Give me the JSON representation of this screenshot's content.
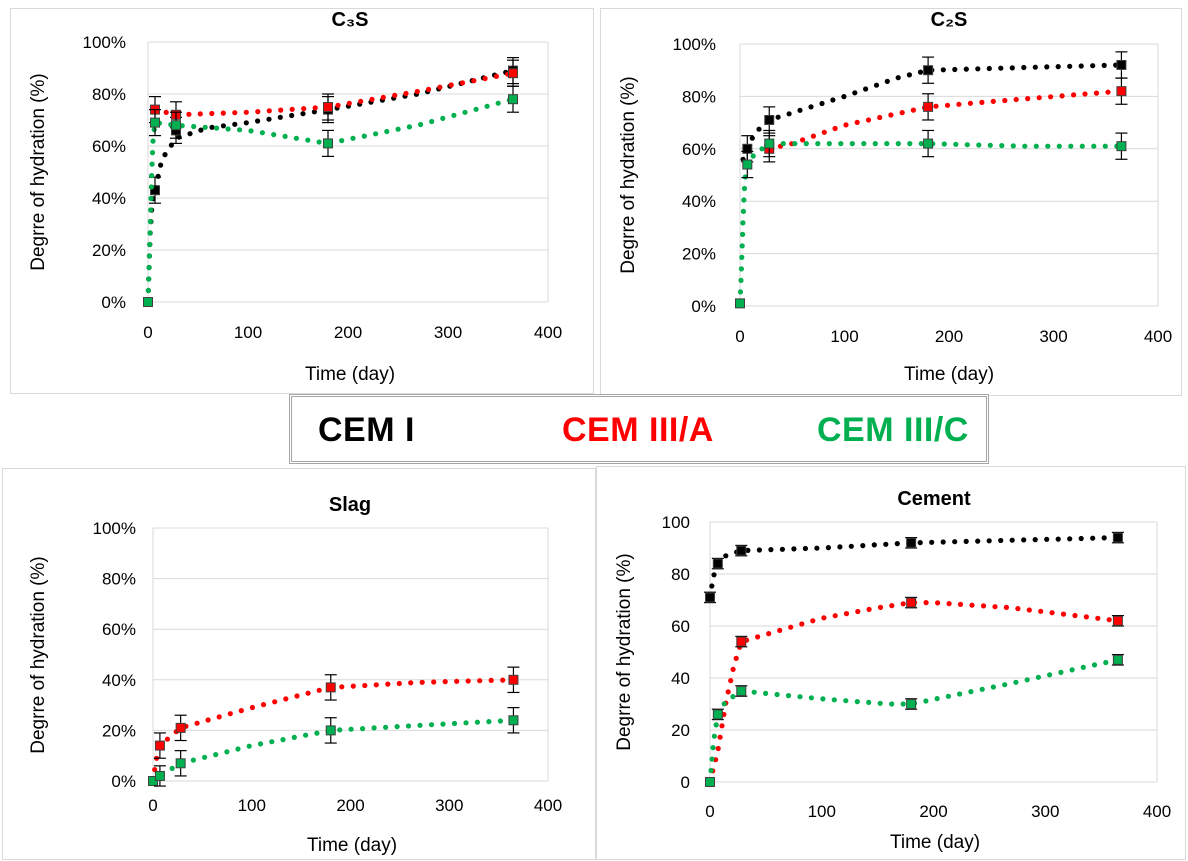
{
  "legend": {
    "items": [
      {
        "label": "CEM I",
        "color": "#000000"
      },
      {
        "label": "CEM III/A",
        "color": "#ff0000"
      },
      {
        "label": "CEM III/C",
        "color": "#00b050"
      }
    ]
  },
  "chart_data": [
    {
      "id": "c3s",
      "type": "scatter",
      "title": "C₃S",
      "xlabel": "Time (day)",
      "ylabel": "Degrre of hydration (%)",
      "xlim": [
        0,
        400
      ],
      "ylim": [
        0,
        100
      ],
      "xticks": [
        "0",
        "100",
        "200",
        "300",
        "400"
      ],
      "yticks": [
        "0%",
        "20%",
        "40%",
        "60%",
        "80%",
        "100%"
      ],
      "grid": "horizontal",
      "series": [
        {
          "name": "CEM I",
          "color": "#000000",
          "points": [
            {
              "x": 0,
              "y": 0,
              "err": 0
            },
            {
              "x": 7,
              "y": 43,
              "err": 5
            },
            {
              "x": 28,
              "y": 66,
              "err": 5
            },
            {
              "x": 180,
              "y": 74,
              "err": 5
            },
            {
              "x": 365,
              "y": 89,
              "err": 5
            }
          ],
          "trend": [
            [
              0,
              0
            ],
            [
              2,
              25
            ],
            [
              4,
              38
            ],
            [
              7,
              43
            ],
            [
              14,
              55
            ],
            [
              28,
              63
            ],
            [
              60,
              67
            ],
            [
              100,
              69
            ],
            [
              180,
              74
            ],
            [
              270,
              80
            ],
            [
              365,
              89
            ]
          ]
        },
        {
          "name": "CEM III/A",
          "color": "#ff0000",
          "points": [
            {
              "x": 7,
              "y": 74,
              "err": 5
            },
            {
              "x": 28,
              "y": 72,
              "err": 5
            },
            {
              "x": 180,
              "y": 75,
              "err": 5
            },
            {
              "x": 365,
              "y": 88,
              "err": 5
            }
          ],
          "trend": [
            [
              7,
              74
            ],
            [
              28,
              72
            ],
            [
              100,
              73
            ],
            [
              180,
              75
            ],
            [
              270,
              81
            ],
            [
              365,
              88
            ]
          ]
        },
        {
          "name": "CEM III/C",
          "color": "#00b050",
          "points": [
            {
              "x": 0,
              "y": 0,
              "err": 0
            },
            {
              "x": 7,
              "y": 69,
              "err": 5
            },
            {
              "x": 28,
              "y": 68,
              "err": 5
            },
            {
              "x": 180,
              "y": 61,
              "err": 5
            },
            {
              "x": 365,
              "y": 78,
              "err": 5
            }
          ],
          "trend": [
            [
              0,
              0
            ],
            [
              1,
              12
            ],
            [
              2,
              26
            ],
            [
              3,
              40
            ],
            [
              4,
              52
            ],
            [
              5,
              62
            ],
            [
              7,
              69
            ],
            [
              28,
              68
            ],
            [
              100,
              66
            ],
            [
              180,
              61
            ],
            [
              270,
              68
            ],
            [
              365,
              78
            ]
          ]
        }
      ]
    },
    {
      "id": "c2s",
      "type": "scatter",
      "title": "C₂S",
      "xlabel": "Time (day)",
      "ylabel": "Degrre of hydration (%)",
      "xlim": [
        0,
        400
      ],
      "ylim": [
        0,
        100
      ],
      "xticks": [
        "0",
        "100",
        "200",
        "300",
        "400"
      ],
      "yticks": [
        "0%",
        "20%",
        "40%",
        "60%",
        "80%",
        "100%"
      ],
      "grid": "horizontal",
      "series": [
        {
          "name": "CEM I",
          "color": "#000000",
          "points": [
            {
              "x": 7,
              "y": 60,
              "err": 5
            },
            {
              "x": 28,
              "y": 71,
              "err": 5
            },
            {
              "x": 180,
              "y": 90,
              "err": 5
            },
            {
              "x": 365,
              "y": 92,
              "err": 5
            }
          ],
          "trend": [
            [
              3,
              56
            ],
            [
              7,
              60
            ],
            [
              14,
              66
            ],
            [
              28,
              71
            ],
            [
              60,
              75
            ],
            [
              100,
              80
            ],
            [
              150,
              87
            ],
            [
              180,
              90
            ],
            [
              270,
              91
            ],
            [
              365,
              92
            ]
          ]
        },
        {
          "name": "CEM III/A",
          "color": "#ff0000",
          "points": [
            {
              "x": 28,
              "y": 60,
              "err": 5
            },
            {
              "x": 180,
              "y": 76,
              "err": 5
            },
            {
              "x": 365,
              "y": 82,
              "err": 5
            }
          ],
          "trend": [
            [
              28,
              60
            ],
            [
              50,
              62
            ],
            [
              100,
              69
            ],
            [
              180,
              76
            ],
            [
              270,
              79
            ],
            [
              365,
              82
            ]
          ]
        },
        {
          "name": "CEM III/C",
          "color": "#00b050",
          "points": [
            {
              "x": 0,
              "y": 1,
              "err": 0
            },
            {
              "x": 7,
              "y": 54,
              "err": 5
            },
            {
              "x": 28,
              "y": 62,
              "err": 5
            },
            {
              "x": 180,
              "y": 62,
              "err": 5
            },
            {
              "x": 365,
              "y": 61,
              "err": 5
            }
          ],
          "trend": [
            [
              0,
              1
            ],
            [
              1,
              10
            ],
            [
              2,
              22
            ],
            [
              3,
              34
            ],
            [
              4,
              43
            ],
            [
              5,
              49
            ],
            [
              7,
              54
            ],
            [
              14,
              58
            ],
            [
              28,
              62
            ],
            [
              100,
              62
            ],
            [
              180,
              62
            ],
            [
              270,
              61
            ],
            [
              365,
              61
            ]
          ]
        }
      ]
    },
    {
      "id": "slag",
      "type": "scatter",
      "title": "Slag",
      "xlabel": "Time (day)",
      "ylabel": "Degrre of hydration (%)",
      "xlim": [
        0,
        400
      ],
      "ylim": [
        0,
        100
      ],
      "xticks": [
        "0",
        "100",
        "200",
        "300",
        "400"
      ],
      "yticks": [
        "0%",
        "20%",
        "40%",
        "60%",
        "80%",
        "100%"
      ],
      "grid": "horizontal",
      "series": [
        {
          "name": "CEM III/A",
          "color": "#ff0000",
          "points": [
            {
              "x": 0,
              "y": 0,
              "err": 0
            },
            {
              "x": 7,
              "y": 14,
              "err": 5
            },
            {
              "x": 28,
              "y": 21,
              "err": 5
            },
            {
              "x": 180,
              "y": 37,
              "err": 5
            },
            {
              "x": 365,
              "y": 40,
              "err": 5
            }
          ],
          "trend": [
            [
              0,
              0
            ],
            [
              3,
              8
            ],
            [
              7,
              14
            ],
            [
              28,
              21
            ],
            [
              100,
              29
            ],
            [
              150,
              34
            ],
            [
              180,
              37
            ],
            [
              270,
              39
            ],
            [
              365,
              40
            ]
          ]
        },
        {
          "name": "CEM III/C",
          "color": "#00b050",
          "points": [
            {
              "x": 0,
              "y": 0,
              "err": 0
            },
            {
              "x": 7,
              "y": 2,
              "err": 4
            },
            {
              "x": 28,
              "y": 7,
              "err": 5
            },
            {
              "x": 180,
              "y": 20,
              "err": 5
            },
            {
              "x": 365,
              "y": 24,
              "err": 5
            }
          ],
          "trend": [
            [
              0,
              0
            ],
            [
              7,
              2
            ],
            [
              28,
              7
            ],
            [
              100,
              14
            ],
            [
              180,
              20
            ],
            [
              270,
              22
            ],
            [
              365,
              24
            ]
          ]
        }
      ]
    },
    {
      "id": "cement",
      "type": "scatter",
      "title": "Cement",
      "xlabel": "Time (day)",
      "ylabel": "Degrre of hydration (%)",
      "xlim": [
        0,
        400
      ],
      "ylim": [
        0,
        100
      ],
      "xticks": [
        "0",
        "100",
        "200",
        "300",
        "400"
      ],
      "yticks": [
        "0",
        "20",
        "40",
        "60",
        "80",
        "100"
      ],
      "grid": "horizontal",
      "series": [
        {
          "name": "CEM I",
          "color": "#000000",
          "points": [
            {
              "x": 0,
              "y": 71,
              "err": 2
            },
            {
              "x": 7,
              "y": 84,
              "err": 2
            },
            {
              "x": 28,
              "y": 89,
              "err": 2
            },
            {
              "x": 180,
              "y": 92,
              "err": 2
            },
            {
              "x": 365,
              "y": 94,
              "err": 2
            }
          ],
          "trend": [
            [
              0,
              71
            ],
            [
              3,
              79
            ],
            [
              7,
              84
            ],
            [
              14,
              87
            ],
            [
              28,
              89
            ],
            [
              100,
              90
            ],
            [
              180,
              92
            ],
            [
              270,
              93
            ],
            [
              365,
              94
            ]
          ]
        },
        {
          "name": "CEM III/A",
          "color": "#ff0000",
          "points": [
            {
              "x": 0,
              "y": 0,
              "err": 0
            },
            {
              "x": 28,
              "y": 54,
              "err": 2
            },
            {
              "x": 180,
              "y": 69,
              "err": 2
            },
            {
              "x": 365,
              "y": 62,
              "err": 2
            }
          ],
          "trend": [
            [
              0,
              0
            ],
            [
              7,
              12
            ],
            [
              14,
              30
            ],
            [
              21,
              44
            ],
            [
              28,
              54
            ],
            [
              60,
              58
            ],
            [
              100,
              63
            ],
            [
              150,
              67
            ],
            [
              180,
              69
            ],
            [
              200,
              69
            ],
            [
              270,
              67
            ],
            [
              365,
              62
            ]
          ]
        },
        {
          "name": "CEM III/C",
          "color": "#00b050",
          "points": [
            {
              "x": 0,
              "y": 0,
              "err": 0
            },
            {
              "x": 7,
              "y": 26,
              "err": 2
            },
            {
              "x": 28,
              "y": 35,
              "err": 2
            },
            {
              "x": 180,
              "y": 30,
              "err": 2
            },
            {
              "x": 365,
              "y": 47,
              "err": 2
            }
          ],
          "trend": [
            [
              0,
              0
            ],
            [
              3,
              15
            ],
            [
              7,
              26
            ],
            [
              14,
              31
            ],
            [
              28,
              35
            ],
            [
              100,
              32
            ],
            [
              160,
              30
            ],
            [
              180,
              30
            ],
            [
              270,
              38
            ],
            [
              365,
              47
            ]
          ]
        }
      ]
    }
  ]
}
